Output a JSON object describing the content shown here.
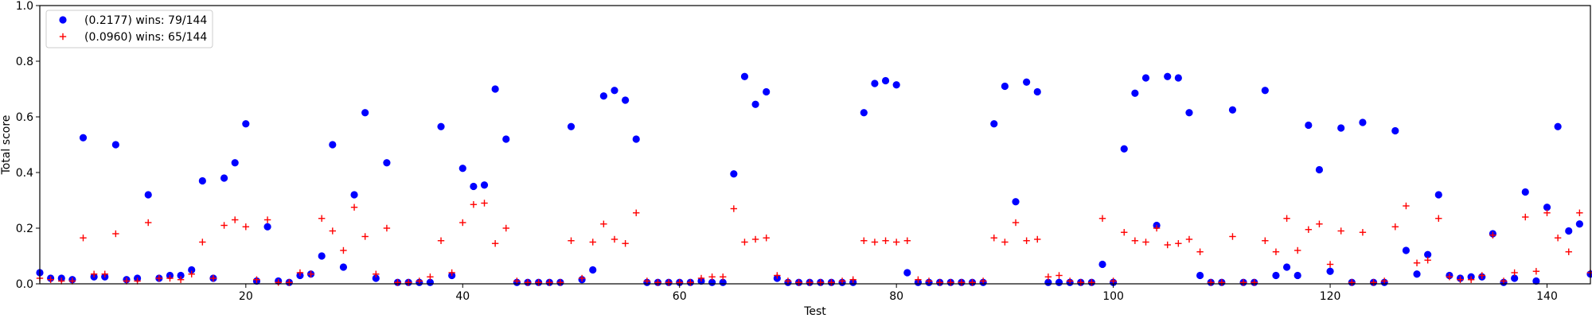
{
  "chart_data": {
    "type": "scatter",
    "xlabel": "Test",
    "ylabel": "Total score",
    "xlim": [
      1,
      144
    ],
    "ylim": [
      0,
      1.0
    ],
    "x_ticks": [
      20,
      40,
      60,
      80,
      100,
      120,
      140
    ],
    "y_ticks": [
      0.0,
      0.2,
      0.4,
      0.6,
      0.8,
      1.0
    ],
    "grid": false,
    "legend_position": "top-left",
    "series": [
      {
        "name": "(0.2177) wins: 79/144",
        "color": "#0000ff",
        "marker": "circle",
        "points": [
          [
            1,
            0.04
          ],
          [
            2,
            0.02
          ],
          [
            3,
            0.02
          ],
          [
            4,
            0.015
          ],
          [
            5,
            0.525
          ],
          [
            6,
            0.025
          ],
          [
            7,
            0.025
          ],
          [
            8,
            0.5
          ],
          [
            9,
            0.015
          ],
          [
            10,
            0.02
          ],
          [
            11,
            0.32
          ],
          [
            12,
            0.02
          ],
          [
            13,
            0.03
          ],
          [
            14,
            0.03
          ],
          [
            15,
            0.05
          ],
          [
            16,
            0.37
          ],
          [
            17,
            0.02
          ],
          [
            18,
            0.38
          ],
          [
            19,
            0.435
          ],
          [
            20,
            0.575
          ],
          [
            21,
            0.01
          ],
          [
            22,
            0.205
          ],
          [
            23,
            0.01
          ],
          [
            24,
            0.005
          ],
          [
            25,
            0.03
          ],
          [
            26,
            0.035
          ],
          [
            27,
            0.1
          ],
          [
            28,
            0.5
          ],
          [
            29,
            0.06
          ],
          [
            30,
            0.32
          ],
          [
            31,
            0.615
          ],
          [
            32,
            0.02
          ],
          [
            33,
            0.435
          ],
          [
            34,
            0.005
          ],
          [
            35,
            0.005
          ],
          [
            36,
            0.005
          ],
          [
            37,
            0.005
          ],
          [
            38,
            0.565
          ],
          [
            39,
            0.03
          ],
          [
            40,
            0.415
          ],
          [
            41,
            0.35
          ],
          [
            42,
            0.355
          ],
          [
            43,
            0.7
          ],
          [
            44,
            0.52
          ],
          [
            45,
            0.005
          ],
          [
            46,
            0.005
          ],
          [
            47,
            0.005
          ],
          [
            48,
            0.005
          ],
          [
            49,
            0.005
          ],
          [
            50,
            0.565
          ],
          [
            51,
            0.015
          ],
          [
            52,
            0.05
          ],
          [
            53,
            0.675
          ],
          [
            54,
            0.695
          ],
          [
            55,
            0.66
          ],
          [
            56,
            0.52
          ],
          [
            57,
            0.005
          ],
          [
            58,
            0.005
          ],
          [
            59,
            0.005
          ],
          [
            60,
            0.005
          ],
          [
            61,
            0.005
          ],
          [
            62,
            0.01
          ],
          [
            63,
            0.005
          ],
          [
            64,
            0.005
          ],
          [
            65,
            0.395
          ],
          [
            66,
            0.745
          ],
          [
            67,
            0.645
          ],
          [
            68,
            0.69
          ],
          [
            69,
            0.02
          ],
          [
            70,
            0.005
          ],
          [
            71,
            0.005
          ],
          [
            72,
            0.005
          ],
          [
            73,
            0.005
          ],
          [
            74,
            0.005
          ],
          [
            75,
            0.005
          ],
          [
            76,
            0.005
          ],
          [
            77,
            0.615
          ],
          [
            78,
            0.72
          ],
          [
            79,
            0.73
          ],
          [
            80,
            0.715
          ],
          [
            81,
            0.04
          ],
          [
            82,
            0.005
          ],
          [
            83,
            0.005
          ],
          [
            84,
            0.005
          ],
          [
            85,
            0.005
          ],
          [
            86,
            0.005
          ],
          [
            87,
            0.005
          ],
          [
            88,
            0.005
          ],
          [
            89,
            0.575
          ],
          [
            90,
            0.71
          ],
          [
            91,
            0.295
          ],
          [
            92,
            0.725
          ],
          [
            93,
            0.69
          ],
          [
            94,
            0.005
          ],
          [
            95,
            0.005
          ],
          [
            96,
            0.005
          ],
          [
            97,
            0.005
          ],
          [
            98,
            0.005
          ],
          [
            99,
            0.07
          ],
          [
            100,
            0.005
          ],
          [
            101,
            0.485
          ],
          [
            102,
            0.685
          ],
          [
            103,
            0.74
          ],
          [
            104,
            0.21
          ],
          [
            105,
            0.745
          ],
          [
            106,
            0.74
          ],
          [
            107,
            0.615
          ],
          [
            108,
            0.03
          ],
          [
            109,
            0.005
          ],
          [
            110,
            0.005
          ],
          [
            111,
            0.625
          ],
          [
            112,
            0.005
          ],
          [
            113,
            0.005
          ],
          [
            114,
            0.695
          ],
          [
            115,
            0.03
          ],
          [
            116,
            0.06
          ],
          [
            117,
            0.03
          ],
          [
            118,
            0.57
          ],
          [
            119,
            0.41
          ],
          [
            120,
            0.045
          ],
          [
            121,
            0.56
          ],
          [
            122,
            0.005
          ],
          [
            123,
            0.58
          ],
          [
            124,
            0.005
          ],
          [
            125,
            0.005
          ],
          [
            126,
            0.55
          ],
          [
            127,
            0.12
          ],
          [
            128,
            0.035
          ],
          [
            129,
            0.105
          ],
          [
            130,
            0.32
          ],
          [
            131,
            0.03
          ],
          [
            132,
            0.02
          ],
          [
            133,
            0.025
          ],
          [
            134,
            0.025
          ],
          [
            135,
            0.18
          ],
          [
            136,
            0.005
          ],
          [
            137,
            0.02
          ],
          [
            138,
            0.33
          ],
          [
            139,
            0.01
          ],
          [
            140,
            0.275
          ],
          [
            141,
            0.565
          ],
          [
            142,
            0.19
          ],
          [
            143,
            0.215
          ],
          [
            144,
            0.035
          ]
        ]
      },
      {
        "name": "(0.0960) wins: 65/144",
        "color": "#ff0000",
        "marker": "plus",
        "points": [
          [
            1,
            0.02
          ],
          [
            2,
            0.015
          ],
          [
            3,
            0.01
          ],
          [
            4,
            0.01
          ],
          [
            5,
            0.165
          ],
          [
            6,
            0.035
          ],
          [
            7,
            0.035
          ],
          [
            8,
            0.18
          ],
          [
            9,
            0.01
          ],
          [
            10,
            0.01
          ],
          [
            11,
            0.22
          ],
          [
            12,
            0.02
          ],
          [
            13,
            0.02
          ],
          [
            14,
            0.015
          ],
          [
            15,
            0.035
          ],
          [
            16,
            0.15
          ],
          [
            17,
            0.02
          ],
          [
            18,
            0.21
          ],
          [
            19,
            0.23
          ],
          [
            20,
            0.205
          ],
          [
            21,
            0.015
          ],
          [
            22,
            0.23
          ],
          [
            23,
            0.005
          ],
          [
            24,
            0.005
          ],
          [
            25,
            0.04
          ],
          [
            26,
            0.035
          ],
          [
            27,
            0.235
          ],
          [
            28,
            0.19
          ],
          [
            29,
            0.12
          ],
          [
            30,
            0.275
          ],
          [
            31,
            0.17
          ],
          [
            32,
            0.035
          ],
          [
            33,
            0.2
          ],
          [
            34,
            0.005
          ],
          [
            35,
            0.005
          ],
          [
            36,
            0.01
          ],
          [
            37,
            0.025
          ],
          [
            38,
            0.155
          ],
          [
            39,
            0.04
          ],
          [
            40,
            0.22
          ],
          [
            41,
            0.285
          ],
          [
            42,
            0.29
          ],
          [
            43,
            0.145
          ],
          [
            44,
            0.2
          ],
          [
            45,
            0.01
          ],
          [
            46,
            0.005
          ],
          [
            47,
            0.005
          ],
          [
            48,
            0.005
          ],
          [
            49,
            0.005
          ],
          [
            50,
            0.155
          ],
          [
            51,
            0.02
          ],
          [
            52,
            0.15
          ],
          [
            53,
            0.215
          ],
          [
            54,
            0.16
          ],
          [
            55,
            0.145
          ],
          [
            56,
            0.255
          ],
          [
            57,
            0.01
          ],
          [
            58,
            0.005
          ],
          [
            59,
            0.005
          ],
          [
            60,
            0.005
          ],
          [
            61,
            0.005
          ],
          [
            62,
            0.02
          ],
          [
            63,
            0.025
          ],
          [
            64,
            0.025
          ],
          [
            65,
            0.27
          ],
          [
            66,
            0.15
          ],
          [
            67,
            0.16
          ],
          [
            68,
            0.165
          ],
          [
            69,
            0.03
          ],
          [
            70,
            0.01
          ],
          [
            71,
            0.005
          ],
          [
            72,
            0.005
          ],
          [
            73,
            0.005
          ],
          [
            74,
            0.005
          ],
          [
            75,
            0.01
          ],
          [
            76,
            0.015
          ],
          [
            77,
            0.155
          ],
          [
            78,
            0.15
          ],
          [
            79,
            0.155
          ],
          [
            80,
            0.15
          ],
          [
            81,
            0.155
          ],
          [
            82,
            0.015
          ],
          [
            83,
            0.01
          ],
          [
            84,
            0.005
          ],
          [
            85,
            0.005
          ],
          [
            86,
            0.005
          ],
          [
            87,
            0.005
          ],
          [
            88,
            0.01
          ],
          [
            89,
            0.165
          ],
          [
            90,
            0.15
          ],
          [
            91,
            0.22
          ],
          [
            92,
            0.155
          ],
          [
            93,
            0.16
          ],
          [
            94,
            0.025
          ],
          [
            95,
            0.03
          ],
          [
            96,
            0.01
          ],
          [
            97,
            0.005
          ],
          [
            98,
            0.005
          ],
          [
            99,
            0.235
          ],
          [
            100,
            0.01
          ],
          [
            101,
            0.185
          ],
          [
            102,
            0.155
          ],
          [
            103,
            0.15
          ],
          [
            104,
            0.2
          ],
          [
            105,
            0.14
          ],
          [
            106,
            0.145
          ],
          [
            107,
            0.16
          ],
          [
            108,
            0.115
          ],
          [
            109,
            0.005
          ],
          [
            110,
            0.005
          ],
          [
            111,
            0.17
          ],
          [
            112,
            0.005
          ],
          [
            113,
            0.005
          ],
          [
            114,
            0.155
          ],
          [
            115,
            0.115
          ],
          [
            116,
            0.235
          ],
          [
            117,
            0.12
          ],
          [
            118,
            0.195
          ],
          [
            119,
            0.215
          ],
          [
            120,
            0.07
          ],
          [
            121,
            0.19
          ],
          [
            122,
            0.005
          ],
          [
            123,
            0.185
          ],
          [
            124,
            0.005
          ],
          [
            125,
            0.01
          ],
          [
            126,
            0.205
          ],
          [
            127,
            0.28
          ],
          [
            128,
            0.075
          ],
          [
            129,
            0.085
          ],
          [
            130,
            0.235
          ],
          [
            131,
            0.025
          ],
          [
            132,
            0.015
          ],
          [
            133,
            0.015
          ],
          [
            134,
            0.03
          ],
          [
            135,
            0.175
          ],
          [
            136,
            0.01
          ],
          [
            137,
            0.04
          ],
          [
            138,
            0.24
          ],
          [
            139,
            0.045
          ],
          [
            140,
            0.255
          ],
          [
            141,
            0.165
          ],
          [
            142,
            0.115
          ],
          [
            143,
            0.255
          ],
          [
            144,
            0.04
          ]
        ]
      }
    ]
  }
}
